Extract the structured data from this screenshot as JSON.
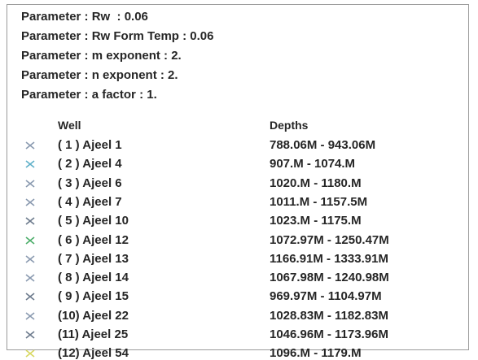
{
  "parameters": [
    "Parameter : Rw  : 0.06",
    "Parameter : Rw Form Temp : 0.06",
    "Parameter : m exponent : 2.",
    "Parameter : n exponent : 2.",
    "Parameter : a factor : 1."
  ],
  "table": {
    "headers": [
      "Well",
      "Depths"
    ],
    "rows": [
      {
        "marker_color": "#8a9ab0",
        "well": "( 1 ) Ajeel 1",
        "depths": "788.06M - 943.06M"
      },
      {
        "marker_color": "#5fb0c8",
        "well": "( 2 ) Ajeel 4",
        "depths": "907.M - 1074.M"
      },
      {
        "marker_color": "#8a9ab0",
        "well": "( 3 ) Ajeel 6",
        "depths": "1020.M - 1180.M"
      },
      {
        "marker_color": "#8a9ab0",
        "well": "( 4 ) Ajeel 7",
        "depths": "1011.M - 1157.5M"
      },
      {
        "marker_color": "#6c7a8c",
        "well": "( 5 ) Ajeel 10",
        "depths": "1023.M - 1175.M"
      },
      {
        "marker_color": "#4cae6a",
        "well": "( 6 ) Ajeel 12",
        "depths": "1072.97M - 1250.47M"
      },
      {
        "marker_color": "#8a9ab0",
        "well": "( 7 ) Ajeel 13",
        "depths": "1166.91M - 1333.91M"
      },
      {
        "marker_color": "#8a9ab0",
        "well": "( 8 ) Ajeel 14",
        "depths": "1067.98M - 1240.98M"
      },
      {
        "marker_color": "#6c7a8c",
        "well": "( 9 ) Ajeel 15",
        "depths": "969.97M - 1104.97M"
      },
      {
        "marker_color": "#8a9ab0",
        "well": "(10) Ajeel 22",
        "depths": "1028.83M - 1182.83M"
      },
      {
        "marker_color": "#6c7a8c",
        "well": "(11) Ajeel 25",
        "depths": "1046.96M - 1173.96M"
      },
      {
        "marker_color": "#d8d860",
        "well": "(12) Ajeel 54",
        "depths": "1096.M - 1179.M"
      }
    ]
  }
}
